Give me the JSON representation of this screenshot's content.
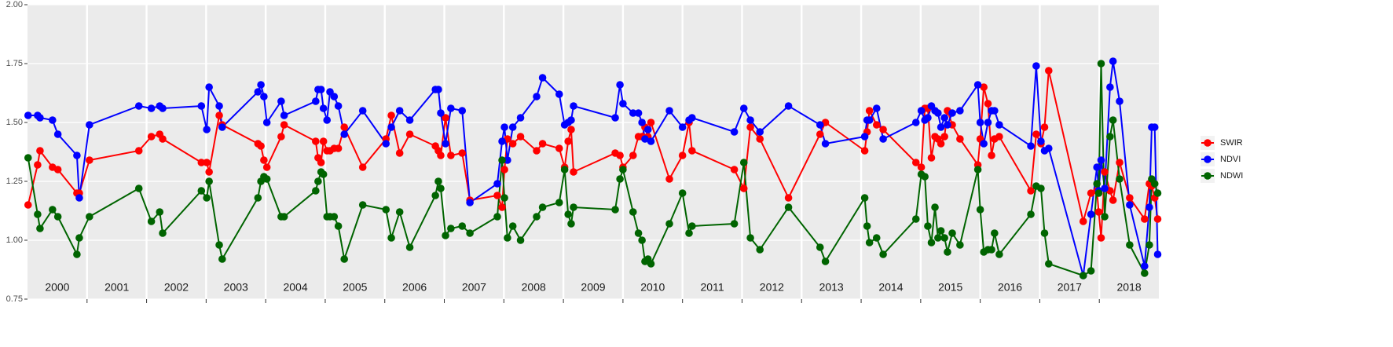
{
  "chart_data": {
    "type": "line",
    "x": [
      2000.01,
      2000.17,
      2000.21,
      2000.42,
      2000.51,
      2000.83,
      2000.87,
      2001.04,
      2001.87,
      2002.08,
      2002.22,
      2002.27,
      2002.92,
      2003.01,
      2003.05,
      2003.22,
      2003.27,
      2003.87,
      2003.92,
      2003.97,
      2004.02,
      2004.26,
      2004.31,
      2004.84,
      2004.88,
      2004.93,
      2004.97,
      2005.03,
      2005.08,
      2005.15,
      2005.22,
      2005.32,
      2005.63,
      2006.02,
      2006.11,
      2006.25,
      2006.42,
      2006.85,
      2006.9,
      2006.94,
      2007.02,
      2007.11,
      2007.3,
      2007.43,
      2007.89,
      2007.97,
      2008.01,
      2008.06,
      2008.15,
      2008.28,
      2008.55,
      2008.65,
      2008.93,
      2009.02,
      2009.08,
      2009.13,
      2009.17,
      2009.87,
      2009.95,
      2010.0,
      2010.17,
      2010.26,
      2010.32,
      2010.37,
      2010.42,
      2010.47,
      2010.78,
      2011.0,
      2011.11,
      2011.16,
      2011.87,
      2012.03,
      2012.14,
      2012.3,
      2012.78,
      2013.31,
      2013.4,
      2014.06,
      2014.1,
      2014.14,
      2014.26,
      2014.37,
      2014.92,
      2015.01,
      2015.07,
      2015.12,
      2015.18,
      2015.24,
      2015.29,
      2015.34,
      2015.4,
      2015.45,
      2015.53,
      2015.66,
      2015.96,
      2016.0,
      2016.06,
      2016.13,
      2016.19,
      2016.24,
      2016.32,
      2016.85,
      2016.94,
      2017.02,
      2017.08,
      2017.15,
      2017.73,
      2017.86,
      2017.96,
      2017.99,
      2018.03,
      2018.09,
      2018.18,
      2018.23,
      2018.34,
      2018.51,
      2018.76,
      2018.84,
      2018.88,
      2018.93,
      2018.98
    ],
    "series": [
      {
        "name": "SWIR",
        "color": "#ff0000",
        "values": [
          1.15,
          1.32,
          1.38,
          1.31,
          1.3,
          1.2,
          1.2,
          1.34,
          1.38,
          1.44,
          1.45,
          1.43,
          1.33,
          1.33,
          1.29,
          1.53,
          1.49,
          1.41,
          1.4,
          1.34,
          1.31,
          1.44,
          1.49,
          1.42,
          1.35,
          1.33,
          1.42,
          1.38,
          1.38,
          1.39,
          1.39,
          1.48,
          1.31,
          1.43,
          1.53,
          1.37,
          1.45,
          1.4,
          1.38,
          1.36,
          1.52,
          1.36,
          1.37,
          1.17,
          1.19,
          1.14,
          1.3,
          1.43,
          1.41,
          1.44,
          1.38,
          1.41,
          1.39,
          1.31,
          1.42,
          1.47,
          1.29,
          1.37,
          1.36,
          1.31,
          1.36,
          1.44,
          1.44,
          1.48,
          1.44,
          1.5,
          1.26,
          1.36,
          1.5,
          1.38,
          1.3,
          1.22,
          1.48,
          1.43,
          1.18,
          1.45,
          1.5,
          1.38,
          1.46,
          1.55,
          1.49,
          1.47,
          1.33,
          1.31,
          1.56,
          1.56,
          1.35,
          1.44,
          1.43,
          1.41,
          1.44,
          1.55,
          1.49,
          1.43,
          1.32,
          1.43,
          1.65,
          1.58,
          1.36,
          1.43,
          1.44,
          1.21,
          1.45,
          1.41,
          1.48,
          1.72,
          1.08,
          1.2,
          1.21,
          1.12,
          1.01,
          1.29,
          1.21,
          1.17,
          1.33,
          1.18,
          1.09,
          1.24,
          1.23,
          1.18,
          1.09
        ]
      },
      {
        "name": "NDVI",
        "color": "#0000ff",
        "values": [
          1.53,
          1.53,
          1.52,
          1.51,
          1.45,
          1.36,
          1.18,
          1.49,
          1.57,
          1.56,
          1.57,
          1.56,
          1.57,
          1.47,
          1.65,
          1.57,
          1.48,
          1.63,
          1.66,
          1.61,
          1.5,
          1.59,
          1.53,
          1.59,
          1.64,
          1.64,
          1.56,
          1.51,
          1.63,
          1.61,
          1.57,
          1.45,
          1.55,
          1.41,
          1.48,
          1.55,
          1.51,
          1.64,
          1.64,
          1.54,
          1.41,
          1.56,
          1.55,
          1.16,
          1.24,
          1.42,
          1.48,
          1.34,
          1.48,
          1.52,
          1.61,
          1.69,
          1.62,
          1.49,
          1.5,
          1.51,
          1.57,
          1.52,
          1.66,
          1.58,
          1.54,
          1.54,
          1.5,
          1.43,
          1.47,
          1.42,
          1.55,
          1.48,
          1.51,
          1.52,
          1.46,
          1.56,
          1.51,
          1.46,
          1.57,
          1.49,
          1.41,
          1.44,
          1.51,
          1.51,
          1.56,
          1.43,
          1.5,
          1.55,
          1.51,
          1.52,
          1.57,
          1.55,
          1.54,
          1.48,
          1.52,
          1.49,
          1.54,
          1.55,
          1.66,
          1.5,
          1.41,
          1.5,
          1.55,
          1.55,
          1.49,
          1.4,
          1.74,
          1.42,
          1.38,
          1.39,
          0.85,
          1.11,
          1.31,
          1.21,
          1.34,
          1.22,
          1.65,
          1.76,
          1.59,
          1.15,
          0.89,
          1.14,
          1.48,
          1.48,
          0.94
        ]
      },
      {
        "name": "NDWI",
        "color": "#006400",
        "values": [
          1.35,
          1.11,
          1.05,
          1.13,
          1.1,
          0.94,
          1.01,
          1.1,
          1.22,
          1.08,
          1.12,
          1.03,
          1.21,
          1.18,
          1.25,
          0.98,
          0.92,
          1.18,
          1.25,
          1.27,
          1.26,
          1.1,
          1.1,
          1.21,
          1.25,
          1.29,
          1.28,
          1.1,
          1.1,
          1.1,
          1.06,
          0.92,
          1.15,
          1.13,
          1.01,
          1.12,
          0.97,
          1.19,
          1.25,
          1.22,
          1.02,
          1.05,
          1.06,
          1.03,
          1.1,
          1.34,
          1.18,
          1.01,
          1.06,
          1.0,
          1.1,
          1.14,
          1.16,
          1.3,
          1.11,
          1.07,
          1.14,
          1.13,
          1.26,
          1.3,
          1.12,
          1.03,
          1.0,
          0.91,
          0.92,
          0.9,
          1.07,
          1.2,
          1.03,
          1.06,
          1.07,
          1.33,
          1.01,
          0.96,
          1.14,
          0.97,
          0.91,
          1.18,
          1.06,
          0.99,
          1.01,
          0.94,
          1.09,
          1.28,
          1.27,
          1.06,
          0.99,
          1.14,
          1.01,
          1.04,
          1.01,
          0.95,
          1.03,
          0.98,
          1.3,
          1.13,
          0.95,
          0.96,
          0.96,
          1.03,
          0.94,
          1.11,
          1.23,
          1.22,
          1.03,
          0.9,
          0.85,
          0.87,
          1.24,
          1.2,
          1.75,
          1.1,
          1.44,
          1.51,
          1.26,
          0.98,
          0.86,
          0.98,
          1.26,
          1.24,
          1.2
        ]
      }
    ],
    "xlim": [
      2000,
      2019
    ],
    "xgrid": [
      2001,
      2002,
      2003,
      2004,
      2005,
      2006,
      2007,
      2008,
      2009,
      2010,
      2011,
      2012,
      2013,
      2014,
      2015,
      2016,
      2017,
      2018
    ],
    "xticks": [
      {
        "value": 2000.5,
        "label": "2000"
      },
      {
        "value": 2001.5,
        "label": "2001"
      },
      {
        "value": 2002.5,
        "label": "2002"
      },
      {
        "value": 2003.5,
        "label": "2003"
      },
      {
        "value": 2004.5,
        "label": "2004"
      },
      {
        "value": 2005.5,
        "label": "2005"
      },
      {
        "value": 2006.5,
        "label": "2006"
      },
      {
        "value": 2007.5,
        "label": "2007"
      },
      {
        "value": 2008.5,
        "label": "2008"
      },
      {
        "value": 2009.5,
        "label": "2009"
      },
      {
        "value": 2010.5,
        "label": "2010"
      },
      {
        "value": 2011.5,
        "label": "2011"
      },
      {
        "value": 2012.5,
        "label": "2012"
      },
      {
        "value": 2013.5,
        "label": "2013"
      },
      {
        "value": 2014.5,
        "label": "2014"
      },
      {
        "value": 2015.5,
        "label": "2015"
      },
      {
        "value": 2016.5,
        "label": "2016"
      },
      {
        "value": 2017.5,
        "label": "2017"
      },
      {
        "value": 2018.5,
        "label": "2018"
      }
    ],
    "ylim": [
      0.75,
      2.0
    ],
    "yticks": [
      {
        "value": 0.75,
        "label": "0.75"
      },
      {
        "value": 1.0,
        "label": "1.00"
      },
      {
        "value": 1.25,
        "label": "1.25"
      },
      {
        "value": 1.5,
        "label": "1.50"
      },
      {
        "value": 1.75,
        "label": "1.75"
      },
      {
        "value": 2.0,
        "label": "2.00"
      }
    ],
    "grid": true,
    "legend": "right"
  }
}
